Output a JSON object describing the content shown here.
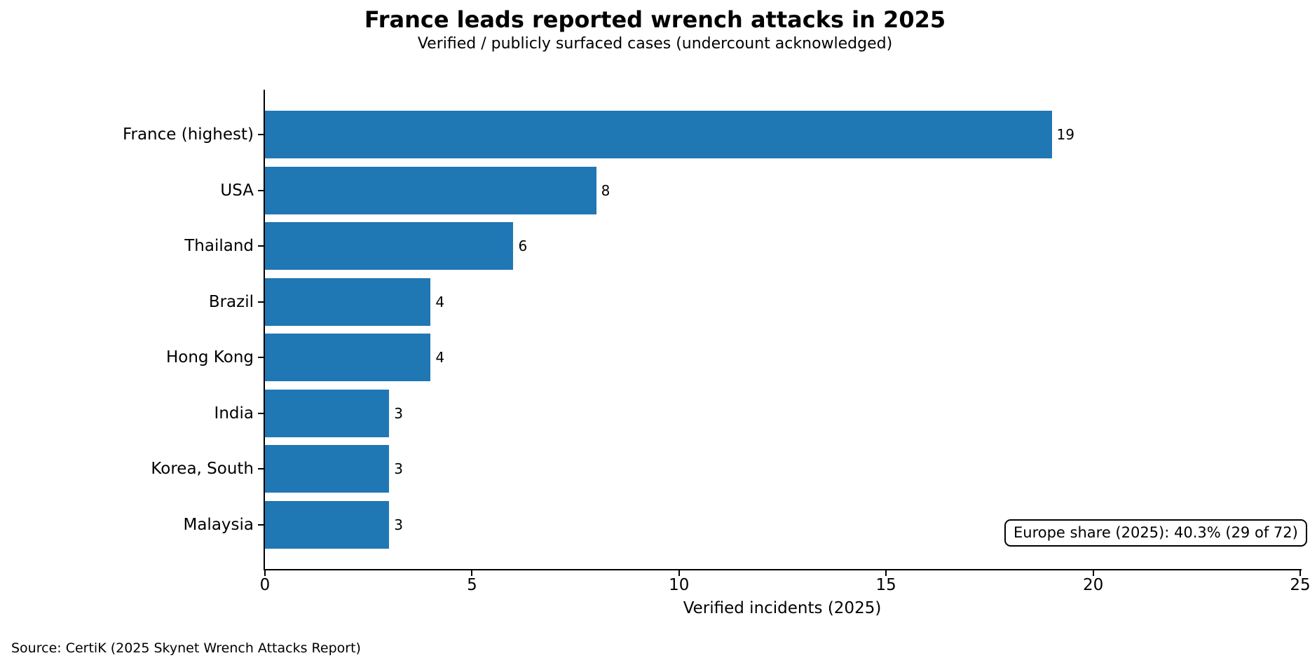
{
  "title": "France leads reported wrench attacks in 2025",
  "subtitle": "Verified / publicly surfaced cases (undercount acknowledged)",
  "source": "Source: CertiK (2025 Skynet Wrench Attacks Report)",
  "annotation": "Europe share (2025): 40.3% (29 of 72)",
  "chart_data": {
    "type": "bar",
    "orientation": "horizontal",
    "title": "France leads reported wrench attacks in 2025",
    "subtitle": "Verified / publicly surfaced cases (undercount acknowledged)",
    "categories": [
      "France (highest)",
      "USA",
      "Thailand",
      "Brazil",
      "Hong Kong",
      "India",
      "Korea, South",
      "Malaysia"
    ],
    "values": [
      19,
      8,
      6,
      4,
      4,
      3,
      3,
      3
    ],
    "xlabel": "Verified incidents (2025)",
    "ylabel": "",
    "xlim": [
      0,
      25
    ],
    "xticks": [
      0,
      5,
      10,
      15,
      20,
      25
    ],
    "grid": false,
    "legend": false,
    "bar_color": "#1f77b4",
    "value_labels": [
      19,
      8,
      6,
      4,
      4,
      3,
      3,
      3
    ],
    "annotation": "Europe share (2025): 40.3% (29 of 72)",
    "source": "Source: CertiK (2025 Skynet Wrench Attacks Report)"
  }
}
